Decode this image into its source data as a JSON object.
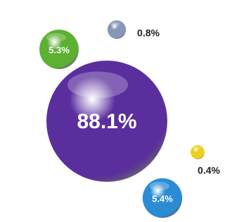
{
  "chart_data": {
    "type": "bubble",
    "values": [
      88.1,
      5.3,
      0.8,
      0.4,
      5.4
    ],
    "value_labels": [
      "88.1%",
      "5.3%",
      "0.8%",
      "0.4%",
      "5.4%"
    ],
    "colors": [
      "#5b2e9e",
      "#5cb032",
      "#8797b8",
      "#efcf1e",
      "#2b8cd4"
    ]
  }
}
